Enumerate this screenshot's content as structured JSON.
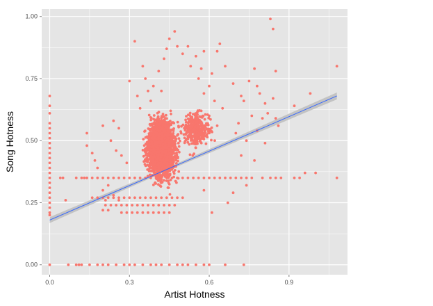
{
  "chart_data": {
    "type": "scatter",
    "title": "",
    "xlabel": "Artist Hotness",
    "ylabel": "Song Hotness",
    "xlim": [
      -0.03,
      1.12
    ],
    "ylim": [
      -0.04,
      1.03
    ],
    "x_ticks": [
      0.0,
      0.3,
      0.6,
      0.9
    ],
    "x_tick_labels": [
      "0.0",
      "0.3",
      "0.6",
      "0.9"
    ],
    "y_ticks": [
      0.0,
      0.25,
      0.5,
      0.75,
      1.0
    ],
    "y_tick_labels": [
      "0.00",
      "0.25",
      "0.50",
      "0.75",
      "1.00"
    ],
    "grid": true,
    "legend": "none",
    "colors": {
      "panel": "#e5e5e5",
      "grid": "#ffffff",
      "points": "#f8766d",
      "fit_line": "#3366ff",
      "confidence_band": "#bdbdbd"
    },
    "annotations": [],
    "series": [
      {
        "values_description_note_omitted": true,
        "points": [
          [
            0.0,
            0.68
          ],
          [
            0.0,
            0.64
          ],
          [
            0.0,
            0.61
          ],
          [
            0.0,
            0.57
          ],
          [
            0.0,
            0.55
          ],
          [
            0.0,
            0.53
          ],
          [
            0.0,
            0.51
          ],
          [
            0.0,
            0.49
          ],
          [
            0.0,
            0.47
          ],
          [
            0.0,
            0.45
          ],
          [
            0.0,
            0.43
          ],
          [
            0.0,
            0.41
          ],
          [
            0.0,
            0.39
          ],
          [
            0.0,
            0.37
          ],
          [
            0.0,
            0.35
          ],
          [
            0.0,
            0.33
          ],
          [
            0.0,
            0.31
          ],
          [
            0.0,
            0.29
          ],
          [
            0.0,
            0.27
          ],
          [
            0.0,
            0.25
          ],
          [
            0.0,
            0.23
          ],
          [
            0.0,
            0.21
          ],
          [
            0.0,
            0.2
          ],
          [
            0.0,
            0.0
          ],
          [
            0.07,
            0.0
          ],
          [
            0.1,
            0.0
          ],
          [
            0.11,
            0.0
          ],
          [
            0.12,
            0.0
          ],
          [
            0.15,
            0.0
          ],
          [
            0.18,
            0.0
          ],
          [
            0.2,
            0.0
          ],
          [
            0.22,
            0.0
          ],
          [
            0.25,
            0.0
          ],
          [
            0.28,
            0.0
          ],
          [
            0.3,
            0.0
          ],
          [
            0.32,
            0.0
          ],
          [
            0.35,
            0.0
          ],
          [
            0.38,
            0.0
          ],
          [
            0.4,
            0.0
          ],
          [
            0.42,
            0.0
          ],
          [
            0.45,
            0.0
          ],
          [
            0.48,
            0.0
          ],
          [
            0.5,
            0.0
          ],
          [
            0.52,
            0.0
          ],
          [
            0.55,
            0.0
          ],
          [
            0.58,
            0.0
          ],
          [
            0.6,
            0.0
          ],
          [
            0.66,
            0.0
          ],
          [
            0.73,
            0.0
          ],
          [
            0.04,
            0.35
          ],
          [
            0.05,
            0.35
          ],
          [
            0.1,
            0.35
          ],
          [
            0.12,
            0.35
          ],
          [
            0.13,
            0.35
          ],
          [
            0.14,
            0.35
          ],
          [
            0.16,
            0.35
          ],
          [
            0.18,
            0.35
          ],
          [
            0.2,
            0.35
          ],
          [
            0.22,
            0.35
          ],
          [
            0.24,
            0.35
          ],
          [
            0.26,
            0.35
          ],
          [
            0.28,
            0.35
          ],
          [
            0.3,
            0.35
          ],
          [
            0.32,
            0.35
          ],
          [
            0.34,
            0.35
          ],
          [
            0.36,
            0.35
          ],
          [
            0.38,
            0.35
          ],
          [
            0.4,
            0.35
          ],
          [
            0.42,
            0.35
          ],
          [
            0.44,
            0.35
          ],
          [
            0.46,
            0.35
          ],
          [
            0.48,
            0.35
          ],
          [
            0.5,
            0.35
          ],
          [
            0.52,
            0.35
          ],
          [
            0.54,
            0.35
          ],
          [
            0.56,
            0.35
          ],
          [
            0.58,
            0.35
          ],
          [
            0.6,
            0.35
          ],
          [
            0.62,
            0.35
          ],
          [
            0.64,
            0.35
          ],
          [
            0.66,
            0.35
          ],
          [
            0.68,
            0.35
          ],
          [
            0.7,
            0.35
          ],
          [
            0.72,
            0.35
          ],
          [
            0.74,
            0.35
          ],
          [
            0.76,
            0.35
          ],
          [
            0.8,
            0.35
          ],
          [
            0.83,
            0.35
          ],
          [
            0.85,
            0.35
          ],
          [
            0.87,
            0.35
          ],
          [
            0.92,
            0.35
          ],
          [
            0.94,
            0.35
          ],
          [
            1.08,
            0.35
          ],
          [
            1.0,
            0.37
          ],
          [
            0.16,
            0.27
          ],
          [
            0.18,
            0.27
          ],
          [
            0.2,
            0.27
          ],
          [
            0.22,
            0.27
          ],
          [
            0.24,
            0.27
          ],
          [
            0.26,
            0.27
          ],
          [
            0.28,
            0.27
          ],
          [
            0.3,
            0.27
          ],
          [
            0.32,
            0.27
          ],
          [
            0.34,
            0.27
          ],
          [
            0.36,
            0.27
          ],
          [
            0.38,
            0.27
          ],
          [
            0.4,
            0.27
          ],
          [
            0.42,
            0.27
          ],
          [
            0.44,
            0.27
          ],
          [
            0.46,
            0.27
          ],
          [
            0.48,
            0.27
          ],
          [
            0.5,
            0.27
          ],
          [
            0.21,
            0.24
          ],
          [
            0.23,
            0.24
          ],
          [
            0.25,
            0.24
          ],
          [
            0.27,
            0.24
          ],
          [
            0.29,
            0.24
          ],
          [
            0.31,
            0.24
          ],
          [
            0.33,
            0.24
          ],
          [
            0.35,
            0.24
          ],
          [
            0.37,
            0.24
          ],
          [
            0.39,
            0.24
          ],
          [
            0.41,
            0.24
          ],
          [
            0.43,
            0.24
          ],
          [
            0.45,
            0.24
          ],
          [
            0.47,
            0.24
          ],
          [
            0.27,
            0.21
          ],
          [
            0.29,
            0.21
          ],
          [
            0.31,
            0.21
          ],
          [
            0.33,
            0.21
          ],
          [
            0.35,
            0.21
          ],
          [
            0.37,
            0.21
          ],
          [
            0.39,
            0.21
          ],
          [
            0.41,
            0.21
          ],
          [
            0.43,
            0.21
          ],
          [
            0.45,
            0.21
          ],
          [
            0.2,
            0.3
          ],
          [
            0.22,
            0.32
          ],
          [
            0.24,
            0.28
          ],
          [
            0.26,
            0.26
          ],
          [
            0.2,
            0.22
          ],
          [
            0.21,
            0.26
          ],
          [
            0.22,
            0.22
          ],
          [
            0.06,
            0.26
          ],
          [
            0.14,
            0.48
          ],
          [
            0.16,
            0.45
          ],
          [
            0.17,
            0.42
          ],
          [
            0.18,
            0.39
          ],
          [
            0.14,
            0.53
          ],
          [
            0.2,
            0.56
          ],
          [
            0.24,
            0.58
          ],
          [
            0.26,
            0.55
          ],
          [
            0.23,
            0.5
          ],
          [
            0.25,
            0.46
          ],
          [
            0.27,
            0.44
          ],
          [
            0.29,
            0.41
          ],
          [
            0.3,
            0.74
          ],
          [
            0.32,
            0.9
          ],
          [
            0.33,
            0.68
          ],
          [
            0.35,
            0.8
          ],
          [
            0.34,
            0.63
          ],
          [
            0.36,
            0.75
          ],
          [
            0.37,
            0.7
          ],
          [
            0.38,
            0.66
          ],
          [
            0.39,
            0.72
          ],
          [
            0.41,
            0.78
          ],
          [
            0.42,
            0.7
          ],
          [
            0.43,
            0.83
          ],
          [
            0.44,
            0.87
          ],
          [
            0.45,
            0.91
          ],
          [
            0.47,
            0.94
          ],
          [
            0.48,
            0.88
          ],
          [
            0.5,
            0.85
          ],
          [
            0.52,
            0.88
          ],
          [
            0.53,
            0.8
          ],
          [
            0.55,
            0.84
          ],
          [
            0.56,
            0.75
          ],
          [
            0.57,
            0.79
          ],
          [
            0.58,
            0.86
          ],
          [
            0.6,
            0.72
          ],
          [
            0.61,
            0.77
          ],
          [
            0.63,
            0.86
          ],
          [
            0.64,
            0.89
          ],
          [
            0.66,
            0.8
          ],
          [
            0.69,
            0.73
          ],
          [
            0.71,
            0.57
          ],
          [
            0.72,
            0.68
          ],
          [
            0.73,
            0.66
          ],
          [
            0.75,
            0.74
          ],
          [
            0.77,
            0.79
          ],
          [
            0.78,
            0.72
          ],
          [
            0.79,
            0.69
          ],
          [
            0.8,
            0.59
          ],
          [
            0.81,
            0.65
          ],
          [
            0.82,
            0.61
          ],
          [
            0.83,
            0.99
          ],
          [
            0.84,
            0.67
          ],
          [
            0.85,
            0.59
          ],
          [
            0.86,
            0.56
          ],
          [
            0.78,
            0.54
          ],
          [
            0.76,
            0.6
          ],
          [
            0.74,
            0.5
          ],
          [
            0.81,
            0.49
          ],
          [
            0.77,
            0.42
          ],
          [
            0.84,
            0.95
          ],
          [
            0.92,
            0.64
          ],
          [
            0.96,
            0.37
          ],
          [
            0.98,
            0.69
          ],
          [
            0.85,
            0.78
          ],
          [
            1.08,
            0.8
          ],
          [
            0.67,
            0.25
          ],
          [
            0.69,
            0.29
          ],
          [
            0.58,
            0.3
          ],
          [
            0.61,
            0.21
          ],
          [
            0.7,
            0.53
          ],
          [
            0.72,
            0.44
          ],
          [
            0.74,
            0.32
          ],
          [
            0.63,
            0.56
          ],
          [
            0.65,
            0.63
          ],
          [
            0.6,
            0.6
          ],
          [
            0.62,
            0.66
          ],
          [
            0.58,
            0.69
          ],
          [
            0.57,
            0.62
          ]
        ]
      }
    ],
    "fit_line": {
      "x": [
        0.0,
        1.08
      ],
      "y": [
        0.18,
        0.68
      ]
    },
    "fit_band_half_width": [
      0.012,
      0.006,
      0.014
    ]
  }
}
